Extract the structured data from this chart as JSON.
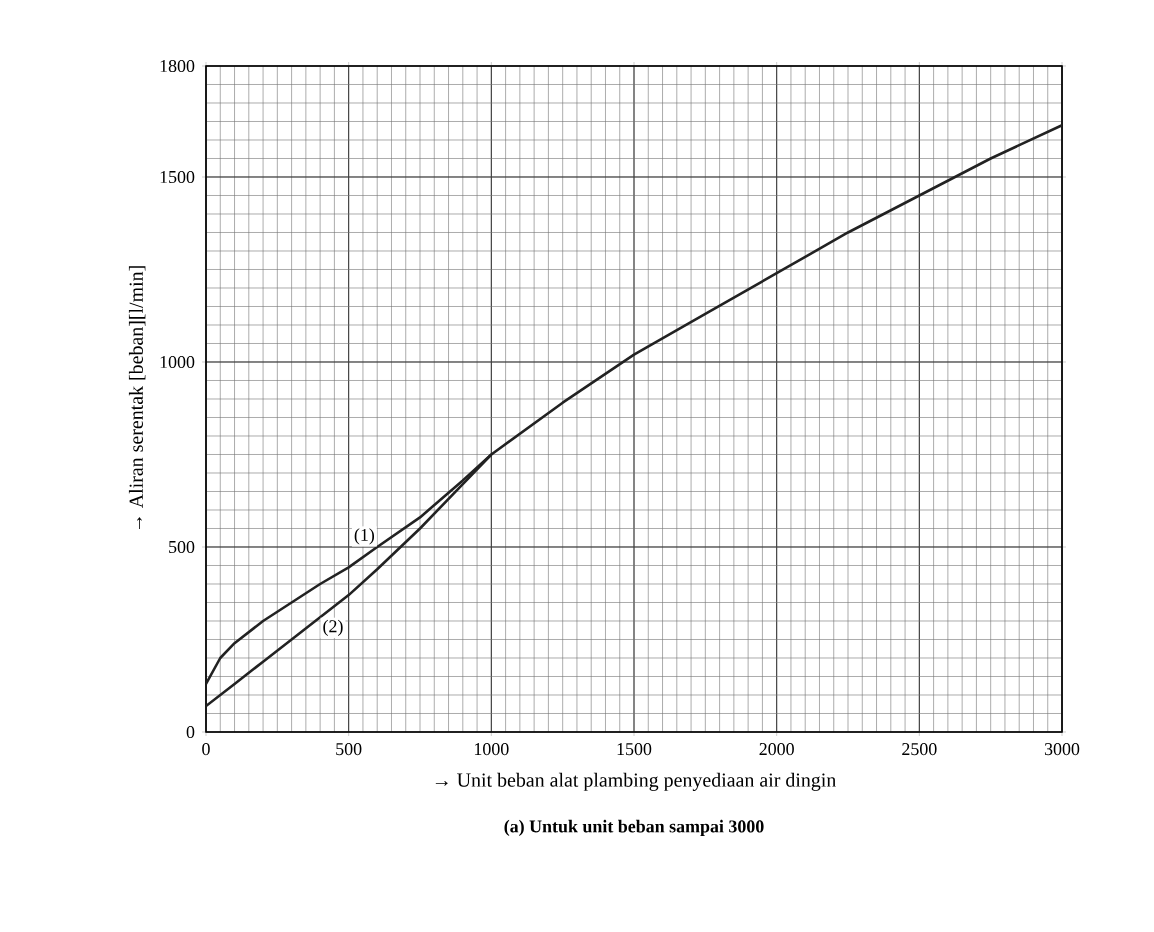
{
  "chart_data": {
    "type": "line",
    "xlabel": "→ Unit beban alat plambing penyediaan air dingin",
    "ylabel": "→ Aliran serentak [beban][l/min]",
    "annotations": [
      "**(a)   Untuk unit beban sampai 3000**"
    ],
    "xlim": [
      0,
      3000
    ],
    "ylim": [
      0,
      1800
    ],
    "xticks": [
      0,
      500,
      1000,
      1500,
      2000,
      2500,
      3000
    ],
    "yticks": [
      0,
      500,
      1000,
      1500,
      1800
    ],
    "grid": true,
    "line_style": "solid",
    "marker": "none",
    "series": [
      {
        "name": "(1)",
        "color": "#222222",
        "x": [
          0,
          50,
          100,
          200,
          300,
          400,
          500,
          600,
          750,
          900,
          1000,
          1250,
          1500,
          1750,
          2000,
          2250,
          2500,
          2750,
          3000
        ],
        "values": [
          130,
          200,
          240,
          300,
          350,
          400,
          445,
          500,
          580,
          680,
          750,
          890,
          1020,
          1130,
          1240,
          1350,
          1450,
          1550,
          1640
        ]
      },
      {
        "name": "(2)",
        "color": "#222222",
        "x": [
          0,
          100,
          200,
          300,
          400,
          500,
          600,
          750,
          900,
          1000
        ],
        "values": [
          70,
          130,
          190,
          250,
          310,
          370,
          440,
          550,
          670,
          750
        ]
      }
    ]
  }
}
